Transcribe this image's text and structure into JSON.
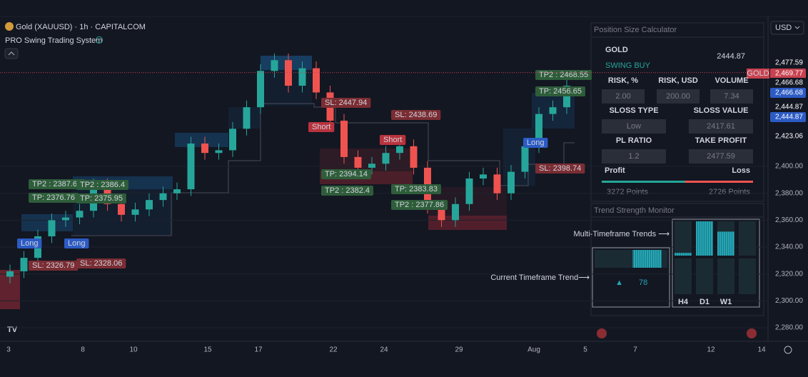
{
  "header": {
    "symbol": "Gold (XAUUSD) · 1h · CAPITALCOM",
    "indicator": "PRO Swing Trading System",
    "currency": "USD"
  },
  "chart_data": {
    "type": "candlestick",
    "open": [
      2318,
      2322,
      2332,
      2348,
      2360,
      2362,
      2367,
      2386,
      2372,
      2364,
      2368,
      2375,
      2380,
      2383,
      2417,
      2410,
      2412,
      2428,
      2444,
      2471,
      2479,
      2460,
      2473,
      2455,
      2434,
      2407,
      2399,
      2402,
      2410,
      2415,
      2399,
      2370,
      2360,
      2372,
      2391,
      2394,
      2380,
      2396,
      2415,
      2439,
      2444
    ],
    "high": [
      2327,
      2337,
      2353,
      2365,
      2367,
      2372,
      2391,
      2391,
      2377,
      2373,
      2380,
      2385,
      2388,
      2422,
      2422,
      2417,
      2433,
      2449,
      2476,
      2484,
      2484,
      2478,
      2478,
      2460,
      2439,
      2412,
      2407,
      2415,
      2420,
      2420,
      2404,
      2375,
      2377,
      2396,
      2399,
      2399,
      2401,
      2420,
      2444,
      2449,
      2465
    ],
    "low": [
      2313,
      2317,
      2327,
      2343,
      2355,
      2357,
      2362,
      2367,
      2359,
      2359,
      2363,
      2370,
      2375,
      2378,
      2405,
      2405,
      2407,
      2423,
      2439,
      2466,
      2455,
      2455,
      2450,
      2429,
      2402,
      2394,
      2394,
      2397,
      2405,
      2394,
      2365,
      2355,
      2355,
      2367,
      2386,
      2375,
      2375,
      2391,
      2410,
      2434,
      2439
    ],
    "close": [
      2322,
      2332,
      2348,
      2360,
      2362,
      2367,
      2386,
      2372,
      2364,
      2368,
      2375,
      2380,
      2383,
      2417,
      2410,
      2412,
      2428,
      2444,
      2471,
      2479,
      2460,
      2473,
      2455,
      2434,
      2407,
      2399,
      2402,
      2410,
      2415,
      2399,
      2370,
      2360,
      2372,
      2391,
      2394,
      2380,
      2396,
      2415,
      2439,
      2444,
      2460
    ],
    "up_color": "#26a69a",
    "down_color": "#ef5350",
    "ylim": [
      2271,
      2511
    ],
    "yticks": [
      {
        "value": 2280,
        "label": "2,280.00"
      },
      {
        "value": 2300,
        "label": "2,300.00"
      },
      {
        "value": 2320,
        "label": "2,320.00"
      },
      {
        "value": 2340,
        "label": "2,340.00"
      },
      {
        "value": 2360,
        "label": "2,360.00"
      },
      {
        "value": 2380,
        "label": "2,380.00"
      },
      {
        "value": 2400,
        "label": "2,400.00"
      }
    ],
    "grid": true,
    "x_labels": [
      "3",
      "8",
      "10",
      "15",
      "17",
      "22",
      "24",
      "29",
      "Aug",
      "5",
      "7",
      "12",
      "14"
    ],
    "price_tags": [
      {
        "value": 2477.59,
        "label": "2,477.59",
        "color": "#131722"
      },
      {
        "value": 2469.77,
        "label": "2,469.77",
        "color": "#c8424f",
        "name": "GOLD"
      },
      {
        "value": 2466.68,
        "label": "2,466.68",
        "color": "#131722"
      },
      {
        "value": 2466.68,
        "label": "2,466.68",
        "color": "#2c5bc4"
      },
      {
        "value": 2444.87,
        "label": "2,444.87",
        "color": "#131722"
      },
      {
        "value": 2444.87,
        "label": "2,444.87",
        "color": "#2c5bc4"
      },
      {
        "value": 2423.06,
        "label": "2,423.06",
        "color": "#131722"
      }
    ],
    "annotations": [
      {
        "text": "TP2 : 2387.66",
        "color": "#2e5d3a"
      },
      {
        "text": "TP: 2376.76",
        "color": "#2e5d3a"
      },
      {
        "text": "TP2 : 2386.4",
        "color": "#2e5d3a"
      },
      {
        "text": "TP: 2375.95",
        "color": "#2e5d3a"
      },
      {
        "text": "Long",
        "color": "#2c5bc4"
      },
      {
        "text": "Long",
        "color": "#2c5bc4"
      },
      {
        "text": "SL: 2326.79",
        "color": "#7a2d33"
      },
      {
        "text": "SL: 2328.06",
        "color": "#7a2d33"
      },
      {
        "text": "SL: 2447.94",
        "color": "#7a2d33"
      },
      {
        "text": "Short",
        "color": "#b8333e"
      },
      {
        "text": "SL: 2438.69",
        "color": "#7a2d33"
      },
      {
        "text": "Short",
        "color": "#b8333e"
      },
      {
        "text": "TP: 2394.14",
        "color": "#2e5d3a"
      },
      {
        "text": "TP2 : 2382.4",
        "color": "#2e5d3a"
      },
      {
        "text": "TP: 2383.83",
        "color": "#2e5d3a"
      },
      {
        "text": "TP2 : 2377.86",
        "color": "#2e5d3a"
      },
      {
        "text": "TP2 : 2468.55",
        "color": "#2e5d3a"
      },
      {
        "text": "TP: 2456.65",
        "color": "#2e5d3a"
      },
      {
        "text": "Long",
        "color": "#2c5bc4"
      },
      {
        "text": "SL: 2398.74",
        "color": "#7a2d33"
      }
    ]
  },
  "calculator": {
    "title": "Position Size Calculator",
    "symbol": "GOLD",
    "price": "2444.87",
    "signal": "SWING BUY",
    "fields": [
      {
        "label": "RISK, %",
        "value": "2.00"
      },
      {
        "label": "RISK, USD",
        "value": "200.00"
      },
      {
        "label": "VOLUME",
        "value": "7.34"
      },
      {
        "label": "SLOSS TYPE",
        "value": "Low"
      },
      {
        "label": "SLOSS VALUE",
        "value": "2417.61"
      },
      {
        "label": "PL RATIO",
        "value": "1.2"
      },
      {
        "label": "TAKE PROFIT",
        "value": "2477.59"
      }
    ],
    "profit_label": "Profit",
    "loss_label": "Loss",
    "profit_points": "3272 Points",
    "loss_points": "2726 Points"
  },
  "trend_monitor": {
    "title": "Trend Strength Monitor",
    "multi_label": "Multi-Timeframe Trends ⟶",
    "current_label": "Current Timeframe Trend⟶",
    "arrow": "▲",
    "score": 78,
    "timeframes": [
      "H4",
      "D1",
      "W1",
      null
    ],
    "strengths": [
      8,
      100,
      70,
      0
    ]
  }
}
